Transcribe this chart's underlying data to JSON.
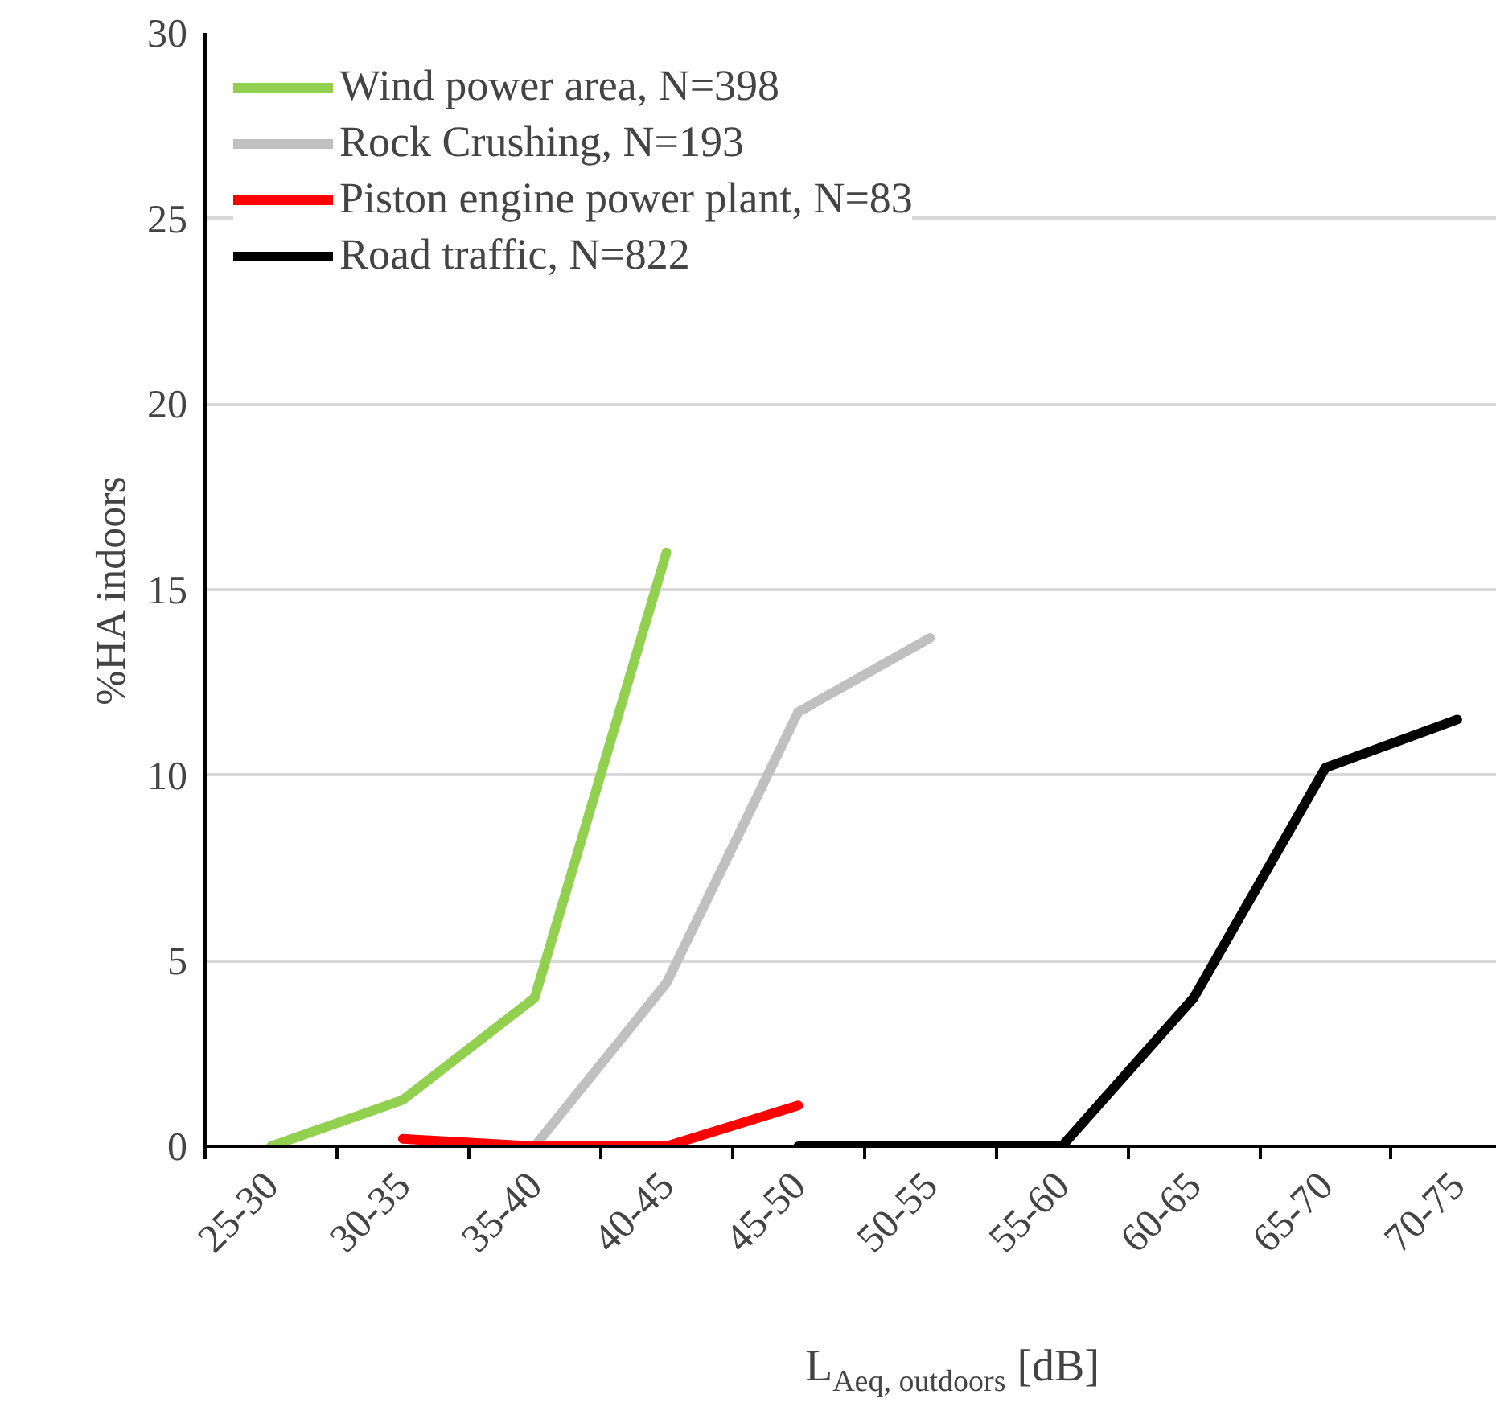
{
  "chart_data": {
    "type": "line",
    "xlabel": "L$_{Aeq, outdoors}$ [dB]",
    "ylabel": "%HA indoors",
    "categories": [
      "25-30",
      "30-35",
      "35-40",
      "40-45",
      "45-50",
      "50-55",
      "55-60",
      "60-65",
      "65-70",
      "70-75"
    ],
    "series": [
      {
        "name": "Wind power area, N=398",
        "color": "#92d050",
        "values": [
          0,
          1.25,
          4.0,
          16.0,
          null,
          null,
          null,
          null,
          null,
          null
        ]
      },
      {
        "name": "Rock Crushing, N=193",
        "color": "#c0c0c0",
        "values": [
          null,
          null,
          0,
          4.4,
          11.7,
          13.7,
          null,
          null,
          null,
          null
        ]
      },
      {
        "name": "Piston engine power plant, N=83",
        "color": "#ff0000",
        "values": [
          null,
          0.2,
          0,
          0,
          1.1,
          null,
          null,
          null,
          null,
          null
        ]
      },
      {
        "name": "Road traffic, N=822",
        "color": "#000000",
        "values": [
          null,
          null,
          null,
          null,
          0,
          0,
          0,
          4.0,
          10.2,
          11.5
        ]
      }
    ],
    "ylim": [
      0,
      30
    ],
    "yticks": [
      0,
      5,
      10,
      15,
      20,
      25,
      30
    ],
    "grid": true,
    "legend": "top left",
    "line_style": "solid",
    "marker": "none"
  }
}
